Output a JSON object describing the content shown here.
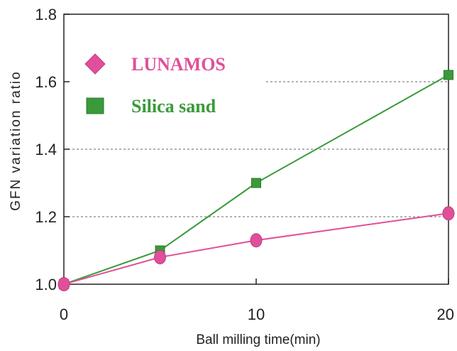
{
  "chart_data": {
    "type": "line",
    "xlabel": "Ball milling time(min)",
    "ylabel": "GFN variation ratio",
    "xlim": [
      0,
      20
    ],
    "ylim": [
      1.0,
      1.8
    ],
    "xticks": [
      0,
      10,
      20
    ],
    "yticks": [
      1.0,
      1.2,
      1.4,
      1.6,
      1.8
    ],
    "xtick_labels": [
      "0",
      "10",
      "20"
    ],
    "ytick_labels": [
      "1.0",
      "1.2",
      "1.4",
      "1.6",
      "1.8"
    ],
    "grid": "horizontal dashed at 1.2, 1.4, 1.6",
    "legend_position": "top-left",
    "series": [
      {
        "name": "LUNAMOS",
        "color": "#e0509a",
        "marker": "circle",
        "legend_marker": "diamond",
        "x": [
          0,
          5,
          10,
          20
        ],
        "y": [
          1.0,
          1.08,
          1.13,
          1.21
        ]
      },
      {
        "name": "Silica sand",
        "color": "#3a9a3a",
        "marker": "square",
        "legend_marker": "square",
        "x": [
          0,
          5,
          10,
          20
        ],
        "y": [
          1.0,
          1.1,
          1.3,
          1.62
        ]
      }
    ]
  }
}
